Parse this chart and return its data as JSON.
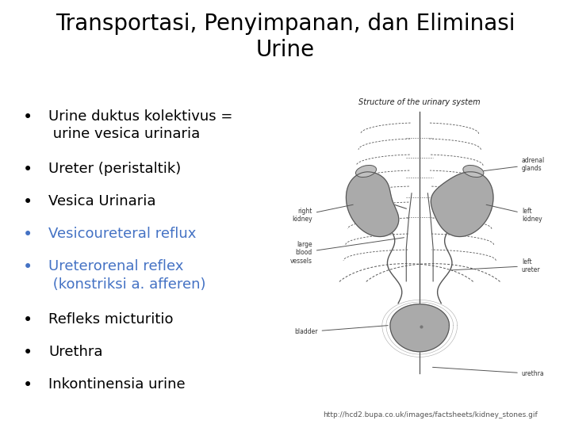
{
  "title_line1": "Transportasi, Penyimpanan, dan Eliminasi",
  "title_line2": "Urine",
  "title_fontsize": 20,
  "title_color": "#000000",
  "background_color": "#ffffff",
  "bullet_items": [
    {
      "text": "Urine duktus kolektivus =\n urine vesica urinaria",
      "color": "#000000"
    },
    {
      "text": "Ureter (peristaltik)",
      "color": "#000000"
    },
    {
      "text": "Vesica Urinaria",
      "color": "#000000"
    },
    {
      "text": "Vesicoureteral reflux",
      "color": "#4472C4"
    },
    {
      "text": "Ureterorenal reflex\n (konstriksi a. afferen)",
      "color": "#4472C4"
    },
    {
      "text": "Refleks micturitio",
      "color": "#000000"
    },
    {
      "text": "Urethra",
      "color": "#000000"
    },
    {
      "text": "Inkontinensia urine",
      "color": "#000000"
    }
  ],
  "bullet_fontsize": 13,
  "footnote": "http://hcd2.bupa.co.uk/images/factsheets/kidney_stones.gif",
  "footnote_fontsize": 6.5,
  "diagram_title": "Structure of the urinary system",
  "diagram_title_fontsize": 7,
  "label_fontsize": 5.5,
  "line_color": "#555555",
  "organ_color": "#aaaaaa",
  "organ_edge": "#555555"
}
